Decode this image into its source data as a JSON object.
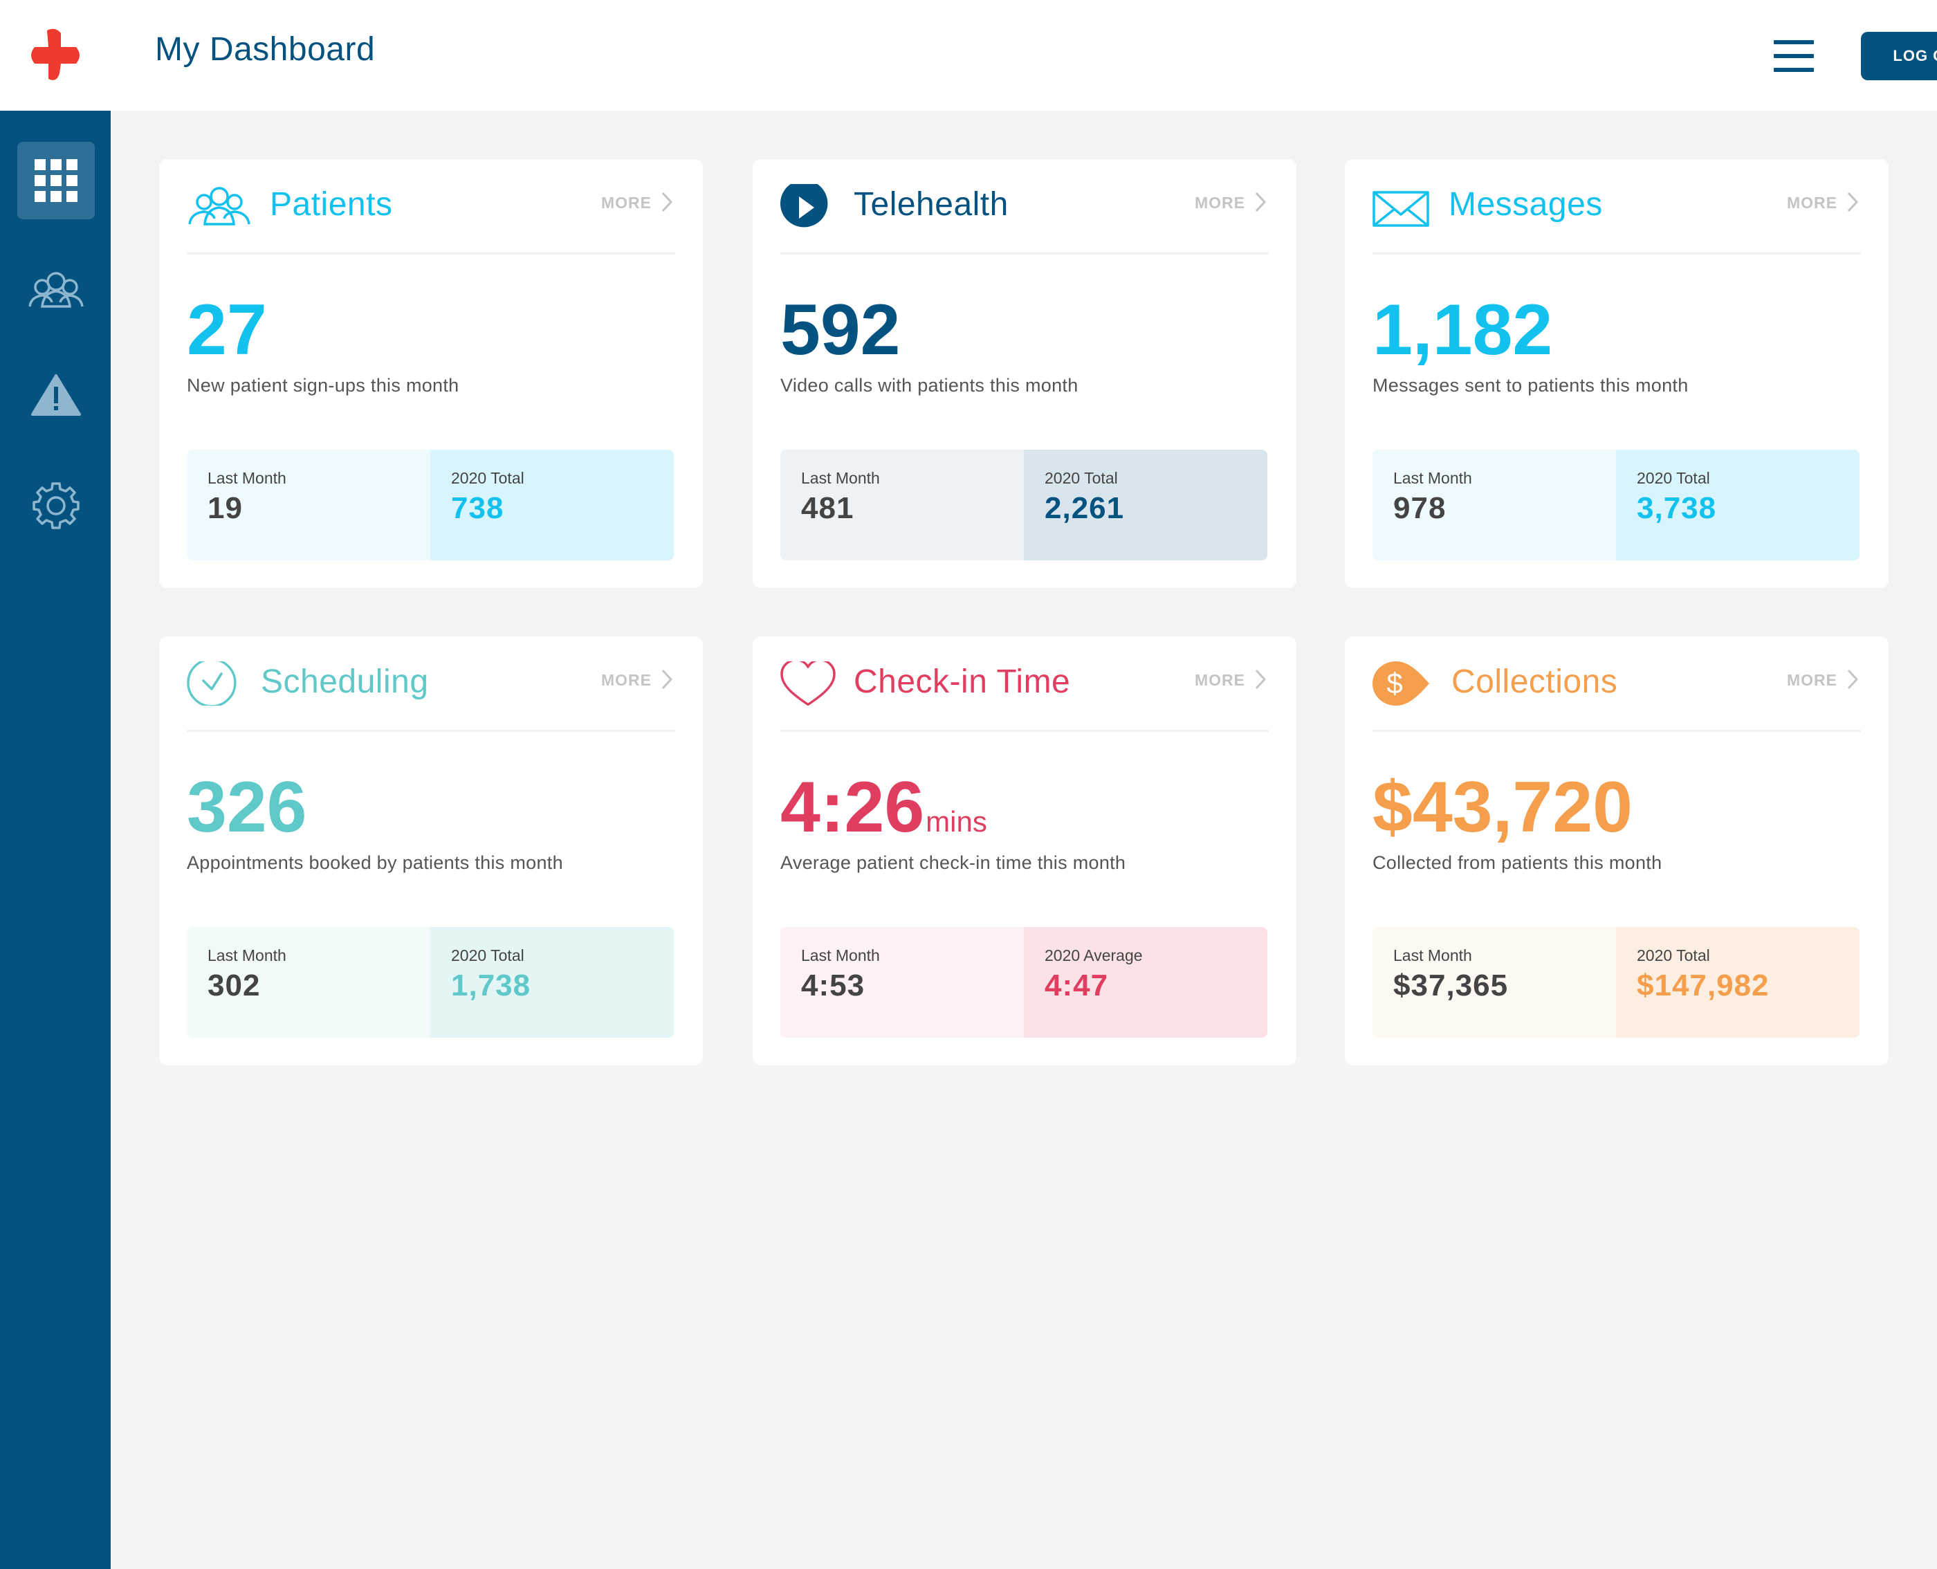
{
  "header": {
    "title": "My Dashboard",
    "logout_label": "LOG OUT"
  },
  "colors": {
    "brand_blue": "#045280",
    "logo_red": "#ef3b2d",
    "cyan": "#12c1ee",
    "teal": "#5fc8c8",
    "red": "#e03e60",
    "orange": "#f59e4c"
  },
  "sidebar": {
    "items": [
      {
        "icon": "grid-icon",
        "active": true
      },
      {
        "icon": "patients-icon",
        "active": false
      },
      {
        "icon": "warning-icon",
        "active": false
      },
      {
        "icon": "gear-icon",
        "active": false
      }
    ]
  },
  "cards": [
    {
      "title": "Patients",
      "icon": "patients-icon",
      "more": "MORE",
      "value": "27",
      "unit": "",
      "description": "New patient sign-ups this month",
      "left_label": "Last Month",
      "left_value": "19",
      "right_label": "2020 Total",
      "right_value": "738"
    },
    {
      "title": "Telehealth",
      "icon": "play-icon",
      "more": "MORE",
      "value": "592",
      "unit": "",
      "description": "Video calls with patients this month",
      "left_label": "Last Month",
      "left_value": "481",
      "right_label": "2020 Total",
      "right_value": "2,261"
    },
    {
      "title": "Messages",
      "icon": "envelope-icon",
      "more": "MORE",
      "value": "1,182",
      "unit": "",
      "description": "Messages sent to patients this month",
      "left_label": "Last Month",
      "left_value": "978",
      "right_label": "2020 Total",
      "right_value": "3,738"
    },
    {
      "title": "Scheduling",
      "icon": "clock-icon",
      "more": "MORE",
      "value": "326",
      "unit": "",
      "description": "Appointments booked by patients this month",
      "left_label": "Last Month",
      "left_value": "302",
      "right_label": "2020 Total",
      "right_value": "1,738"
    },
    {
      "title": "Check-in Time",
      "icon": "heart-icon",
      "more": "MORE",
      "value": "4:26",
      "unit": "mins",
      "description": "Average patient check-in time this month",
      "left_label": "Last Month",
      "left_value": "4:53",
      "right_label": "2020 Average",
      "right_value": "4:47"
    },
    {
      "title": "Collections",
      "icon": "dollar-tag-icon",
      "more": "MORE",
      "value": "$43,720",
      "unit": "",
      "description": "Collected from patients this month",
      "left_label": "Last Month",
      "left_value": "$37,365",
      "right_label": "2020 Total",
      "right_value": "$147,982"
    }
  ]
}
